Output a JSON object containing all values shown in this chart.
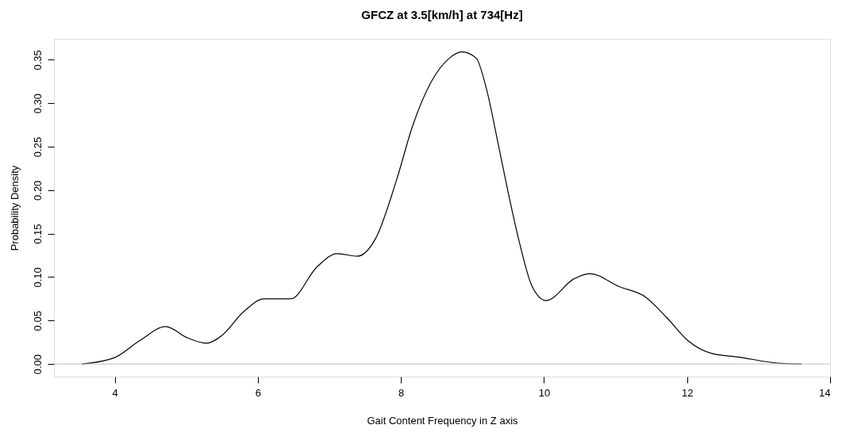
{
  "chart_data": {
    "type": "line",
    "title": "GFCZ at 3.5[km/h] at 734[Hz]",
    "xlabel": "Gait Content Frequency in Z axis",
    "ylabel": "Probability Density",
    "x": [
      3.54,
      3.99,
      4.35,
      4.71,
      5.02,
      5.28,
      5.5,
      5.8,
      6.09,
      6.46,
      6.83,
      7.11,
      7.39,
      7.65,
      7.94,
      8.16,
      8.42,
      8.68,
      8.85,
      9.05,
      9.2,
      9.35,
      9.5,
      9.65,
      9.83,
      10.03,
      10.42,
      10.64,
      11.05,
      11.42,
      11.72,
      12.01,
      12.35,
      12.72,
      13.27,
      13.6
    ],
    "series": [
      {
        "color": "#000000",
        "values": [
          0.0,
          0.007,
          0.027,
          0.043,
          0.03,
          0.024,
          0.033,
          0.06,
          0.075,
          0.075,
          0.112,
          0.127,
          0.124,
          0.145,
          0.212,
          0.273,
          0.324,
          0.352,
          0.359,
          0.352,
          0.315,
          0.257,
          0.197,
          0.142,
          0.09,
          0.073,
          0.098,
          0.104,
          0.089,
          0.077,
          0.053,
          0.027,
          0.012,
          0.008,
          0.001,
          0.0
        ]
      }
    ],
    "xlim": [
      3.15,
      14.0
    ],
    "ylim": [
      -0.0145,
      0.374
    ],
    "xticks": [
      4,
      6,
      8,
      10,
      12,
      14
    ],
    "yticks": [
      {
        "value": 0,
        "label": "0.00"
      },
      {
        "value": 0.05,
        "label": "0.05"
      },
      {
        "value": 0.1,
        "label": "0.10"
      },
      {
        "value": 0.15,
        "label": "0.15"
      },
      {
        "value": 0.2,
        "label": "0.20"
      },
      {
        "value": 0.25,
        "label": "0.25"
      },
      {
        "value": 0.3,
        "label": "0.30"
      },
      {
        "value": 0.35,
        "label": "0.35"
      }
    ],
    "ref_lines": [
      {
        "axis": "y",
        "value": 0,
        "color": "#bebebe"
      }
    ],
    "grid": false,
    "marker": "none",
    "line_style": "solid"
  }
}
